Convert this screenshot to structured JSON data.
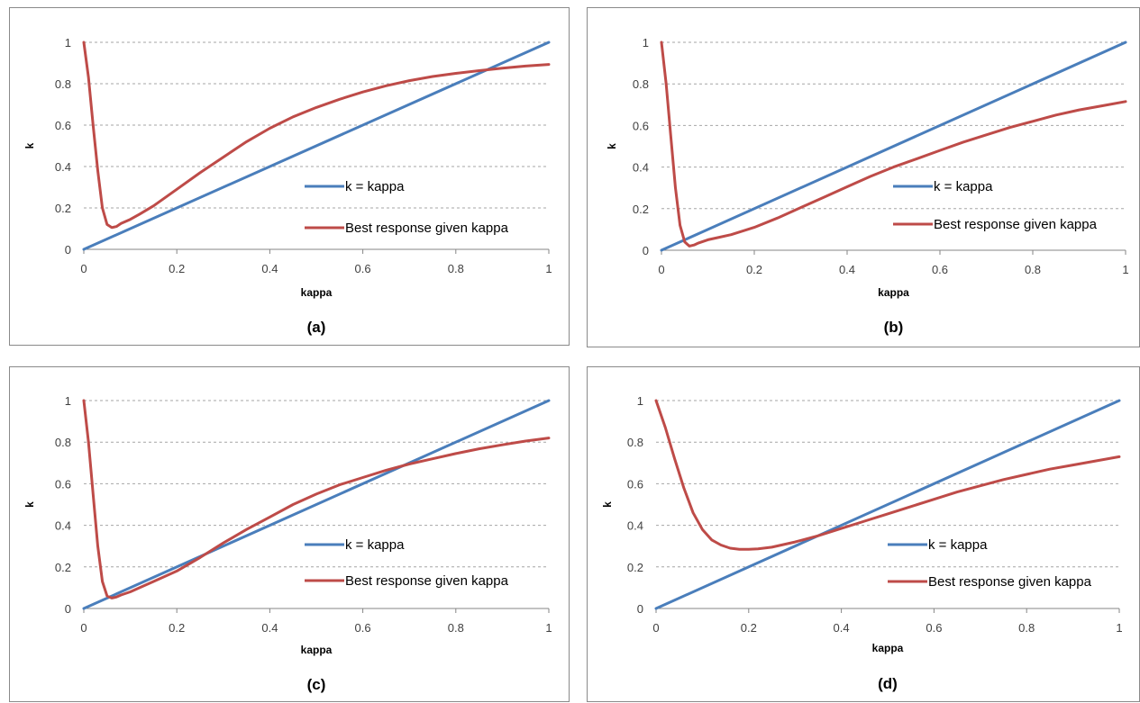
{
  "colors": {
    "identity": "#4a7ebb",
    "response": "#be4b48",
    "grid": "#a6a6a6"
  },
  "chart_data": [
    {
      "type": "line",
      "caption": "(a)",
      "xlabel": "kappa",
      "ylabel": "k",
      "xlim": [
        0,
        1
      ],
      "ylim": [
        0,
        1
      ],
      "xticks": [
        "0",
        "0.2",
        "0.4",
        "0.6",
        "0.8",
        "1"
      ],
      "yticks": [
        "0",
        "0.2",
        "0.4",
        "0.6",
        "0.8",
        "1"
      ],
      "grid": "horizontal dashed",
      "legend_position": "right-middle",
      "series": [
        {
          "name": "k = kappa",
          "x": [
            0,
            1
          ],
          "y": [
            0,
            1
          ]
        },
        {
          "name": "Best response given kappa",
          "x": [
            0,
            0.01,
            0.02,
            0.03,
            0.04,
            0.05,
            0.06,
            0.07,
            0.08,
            0.1,
            0.12,
            0.15,
            0.2,
            0.25,
            0.3,
            0.35,
            0.4,
            0.45,
            0.5,
            0.55,
            0.6,
            0.65,
            0.7,
            0.75,
            0.8,
            0.85,
            0.9,
            0.95,
            1
          ],
          "y": [
            1,
            0.83,
            0.6,
            0.38,
            0.2,
            0.12,
            0.105,
            0.11,
            0.125,
            0.145,
            0.17,
            0.21,
            0.29,
            0.37,
            0.445,
            0.52,
            0.585,
            0.64,
            0.685,
            0.725,
            0.76,
            0.79,
            0.815,
            0.835,
            0.85,
            0.863,
            0.875,
            0.885,
            0.893
          ]
        }
      ]
    },
    {
      "type": "line",
      "caption": "(b)",
      "xlabel": "kappa",
      "ylabel": "k",
      "xlim": [
        0,
        1
      ],
      "ylim": [
        0,
        1
      ],
      "xticks": [
        "0",
        "0.2",
        "0.4",
        "0.6",
        "0.8",
        "1"
      ],
      "yticks": [
        "0",
        "0.2",
        "0.4",
        "0.6",
        "0.8",
        "1"
      ],
      "grid": "horizontal dashed",
      "legend_position": "right-middle",
      "series": [
        {
          "name": "k = kappa",
          "x": [
            0,
            1
          ],
          "y": [
            0,
            1
          ]
        },
        {
          "name": "Best response given kappa",
          "x": [
            0,
            0.01,
            0.02,
            0.03,
            0.04,
            0.05,
            0.06,
            0.07,
            0.08,
            0.1,
            0.12,
            0.15,
            0.2,
            0.25,
            0.3,
            0.35,
            0.4,
            0.45,
            0.5,
            0.55,
            0.6,
            0.65,
            0.7,
            0.75,
            0.8,
            0.85,
            0.9,
            0.95,
            1
          ],
          "y": [
            1,
            0.8,
            0.55,
            0.3,
            0.12,
            0.04,
            0.02,
            0.025,
            0.035,
            0.05,
            0.06,
            0.075,
            0.11,
            0.155,
            0.205,
            0.255,
            0.305,
            0.355,
            0.4,
            0.44,
            0.48,
            0.52,
            0.555,
            0.59,
            0.62,
            0.65,
            0.675,
            0.695,
            0.715
          ]
        }
      ]
    },
    {
      "type": "line",
      "caption": "(c)",
      "xlabel": "kappa",
      "ylabel": "k",
      "xlim": [
        0,
        1
      ],
      "ylim": [
        0,
        1
      ],
      "xticks": [
        "0",
        "0.2",
        "0.4",
        "0.6",
        "0.8",
        "1"
      ],
      "yticks": [
        "0",
        "0.2",
        "0.4",
        "0.6",
        "0.8",
        "1"
      ],
      "grid": "horizontal dashed",
      "legend_position": "right-middle",
      "series": [
        {
          "name": "k = kappa",
          "x": [
            0,
            1
          ],
          "y": [
            0,
            1
          ]
        },
        {
          "name": "Best response given kappa",
          "x": [
            0,
            0.01,
            0.02,
            0.03,
            0.04,
            0.05,
            0.06,
            0.07,
            0.08,
            0.1,
            0.12,
            0.15,
            0.2,
            0.25,
            0.3,
            0.35,
            0.4,
            0.45,
            0.5,
            0.55,
            0.6,
            0.65,
            0.7,
            0.75,
            0.8,
            0.85,
            0.9,
            0.95,
            1
          ],
          "y": [
            1,
            0.8,
            0.55,
            0.3,
            0.13,
            0.06,
            0.05,
            0.055,
            0.065,
            0.08,
            0.1,
            0.13,
            0.18,
            0.245,
            0.315,
            0.38,
            0.44,
            0.5,
            0.55,
            0.595,
            0.63,
            0.665,
            0.695,
            0.72,
            0.745,
            0.768,
            0.787,
            0.805,
            0.82
          ]
        }
      ]
    },
    {
      "type": "line",
      "caption": "(d)",
      "xlabel": "kappa",
      "ylabel": "k",
      "xlim": [
        0,
        1
      ],
      "ylim": [
        0,
        1
      ],
      "xticks": [
        "0",
        "0.2",
        "0.4",
        "0.6",
        "0.8",
        "1"
      ],
      "yticks": [
        "0",
        "0.2",
        "0.4",
        "0.6",
        "0.8",
        "1"
      ],
      "grid": "horizontal dashed",
      "legend_position": "right-middle",
      "series": [
        {
          "name": "k = kappa",
          "x": [
            0,
            1
          ],
          "y": [
            0,
            1
          ]
        },
        {
          "name": "Best response given kappa",
          "x": [
            0,
            0.02,
            0.04,
            0.06,
            0.08,
            0.1,
            0.12,
            0.14,
            0.16,
            0.18,
            0.2,
            0.22,
            0.25,
            0.3,
            0.35,
            0.4,
            0.45,
            0.5,
            0.55,
            0.6,
            0.65,
            0.7,
            0.75,
            0.8,
            0.85,
            0.9,
            0.95,
            1
          ],
          "y": [
            1,
            0.87,
            0.72,
            0.58,
            0.46,
            0.38,
            0.33,
            0.305,
            0.29,
            0.285,
            0.285,
            0.287,
            0.295,
            0.32,
            0.35,
            0.385,
            0.42,
            0.455,
            0.49,
            0.525,
            0.56,
            0.59,
            0.62,
            0.645,
            0.67,
            0.69,
            0.71,
            0.73
          ]
        }
      ]
    }
  ]
}
